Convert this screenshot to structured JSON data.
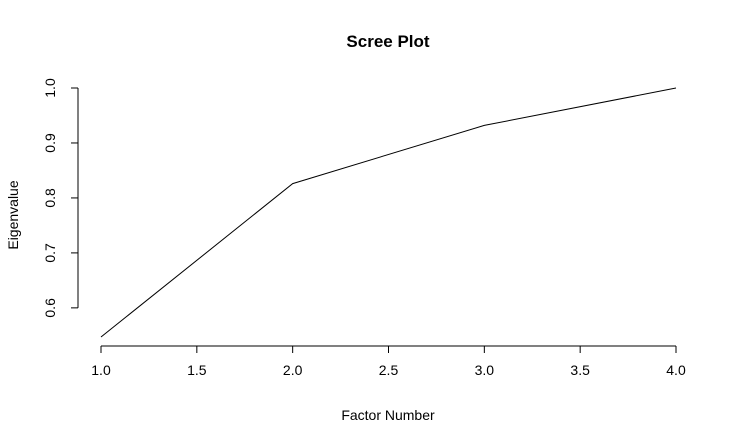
{
  "chart_data": {
    "type": "line",
    "title": "Scree Plot",
    "xlabel": "Factor Number",
    "ylabel": "Eigenvalue",
    "x": [
      1.0,
      2.0,
      3.0,
      4.0
    ],
    "y": [
      0.547,
      0.826,
      0.932,
      1.0
    ],
    "xlim": [
      1.0,
      4.0
    ],
    "ylim": [
      0.547,
      1.0
    ],
    "x_ticks": [
      "1.0",
      "1.5",
      "2.0",
      "2.5",
      "3.0",
      "3.5",
      "4.0"
    ],
    "y_ticks": [
      "0.6",
      "0.7",
      "0.8",
      "0.9",
      "1.0"
    ],
    "grid": false,
    "line_color": "#000000"
  }
}
